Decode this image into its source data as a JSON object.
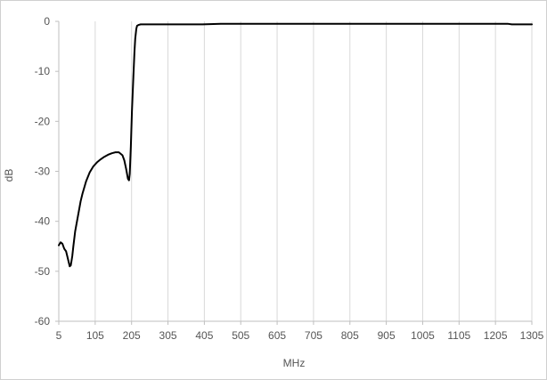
{
  "chart_data": {
    "type": "line",
    "title": "",
    "xlabel": "MHz",
    "ylabel": "dB",
    "xlim": [
      5,
      1305
    ],
    "ylim": [
      -60,
      0
    ],
    "x_ticks": [
      5,
      105,
      205,
      305,
      405,
      505,
      605,
      705,
      805,
      905,
      1005,
      1105,
      1205,
      1305
    ],
    "y_ticks": [
      0,
      -10,
      -20,
      -30,
      -40,
      -50,
      -60
    ],
    "grid": "vertical",
    "legend": "none",
    "colors": {
      "series": "#000000",
      "grid": "#d9d9d9",
      "axis": "#bfbfbf",
      "text": "#555555",
      "frame": "#d0d0d0"
    },
    "series": [
      {
        "x": [
          5,
          10,
          15,
          20,
          25,
          30,
          35,
          38,
          42,
          45,
          50,
          55,
          60,
          65,
          70,
          80,
          90,
          100,
          110,
          120,
          130,
          140,
          150,
          160,
          170,
          180,
          185,
          190,
          195,
          198,
          200,
          203,
          206,
          210,
          213,
          215,
          218,
          220,
          225,
          230,
          240,
          260,
          300,
          400,
          450,
          500,
          600,
          700,
          800,
          900,
          1000,
          1100,
          1200,
          1240,
          1250,
          1305
        ],
        "y": [
          -44.8,
          -44.2,
          -44.5,
          -45.5,
          -46.0,
          -47.5,
          -49.0,
          -48.8,
          -47.0,
          -45.0,
          -42.0,
          -40.0,
          -38.0,
          -36.0,
          -34.5,
          -32.0,
          -30.2,
          -29.0,
          -28.2,
          -27.6,
          -27.1,
          -26.7,
          -26.4,
          -26.2,
          -26.2,
          -26.8,
          -27.8,
          -29.5,
          -31.5,
          -31.8,
          -30.5,
          -25.0,
          -18.0,
          -11.0,
          -6.0,
          -3.5,
          -1.5,
          -0.9,
          -0.7,
          -0.6,
          -0.6,
          -0.6,
          -0.6,
          -0.6,
          -0.5,
          -0.5,
          -0.5,
          -0.5,
          -0.5,
          -0.5,
          -0.5,
          -0.5,
          -0.5,
          -0.5,
          -0.6,
          -0.6
        ]
      }
    ]
  }
}
